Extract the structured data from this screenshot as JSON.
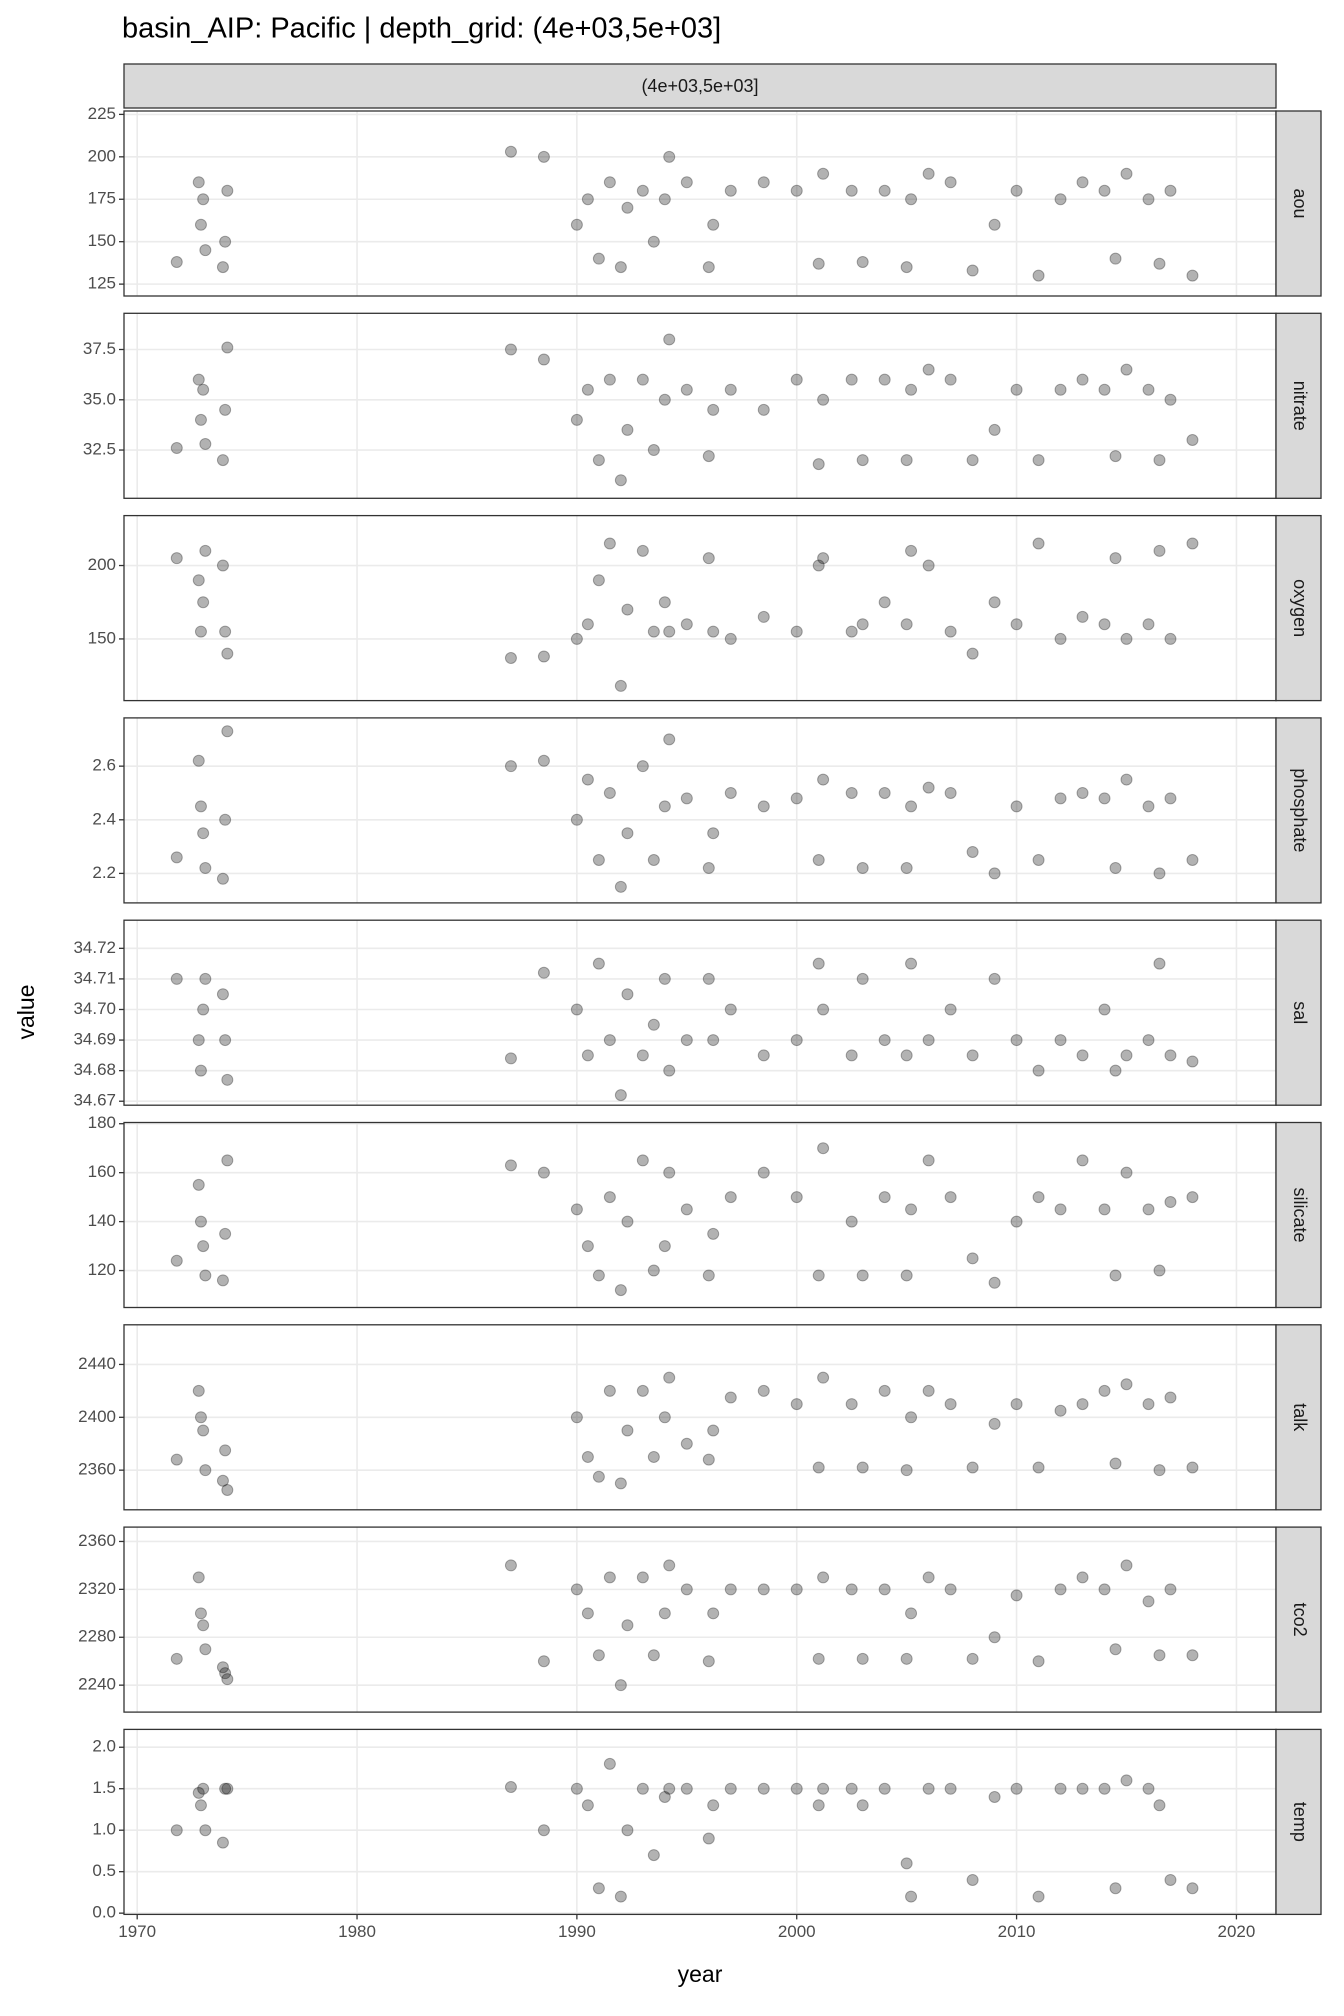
{
  "chart_data": {
    "type": "scatter",
    "title": "basin_AIP: Pacific | depth_grid: (4e+03,5e+03]",
    "facet_label": "(4e+03,5e+03]",
    "x_label": "year",
    "y_label": "value",
    "xlim": [
      1969.4,
      2021.8
    ],
    "xticks": [
      1970,
      1980,
      1990,
      2000,
      2010,
      2020
    ],
    "grid": true,
    "color": "#000000",
    "opacity": 0.3,
    "x": [
      1971.8,
      1972.8,
      1972.9,
      1973.0,
      1973.1,
      1973.9,
      1974.0,
      1974.1,
      1987.0,
      1988.5,
      1990.0,
      1990.5,
      1991.0,
      1991.5,
      1992.0,
      1992.3,
      1993.0,
      1993.5,
      1994.0,
      1994.2,
      1995.0,
      1996.0,
      1996.2,
      1997.0,
      1998.5,
      2000.0,
      2001.0,
      2001.2,
      2002.5,
      2003.0,
      2004.0,
      2005.0,
      2005.2,
      2006.0,
      2007.0,
      2008.0,
      2009.0,
      2010.0,
      2011.0,
      2012.0,
      2013.0,
      2014.0,
      2014.5,
      2015.0,
      2016.0,
      2016.5,
      2017.0,
      2018.0
    ],
    "panels": [
      {
        "name": "aou",
        "ylim": [
          118,
          227
        ],
        "yticks": [
          125,
          150,
          175,
          200,
          225
        ],
        "values": [
          138,
          185,
          160,
          175,
          145,
          135,
          150,
          180,
          203,
          200,
          160,
          175,
          140,
          185,
          135,
          170,
          180,
          150,
          175,
          200,
          185,
          135,
          160,
          180,
          185,
          180,
          137,
          190,
          180,
          138,
          180,
          135,
          175,
          190,
          185,
          133,
          160,
          180,
          130,
          175,
          185,
          180,
          140,
          190,
          175,
          137,
          180,
          130
        ]
      },
      {
        "name": "nitrate",
        "ylim": [
          30.1,
          39.3
        ],
        "yticks": [
          32.5,
          {
            "value": 35,
            "label": "35.0"
          },
          37.5
        ],
        "values": [
          32.6,
          36.0,
          34.0,
          35.5,
          32.8,
          32.0,
          34.5,
          37.6,
          37.5,
          37.0,
          34.0,
          35.5,
          32.0,
          36.0,
          31.0,
          33.5,
          36.0,
          32.5,
          35.0,
          38.0,
          35.5,
          32.2,
          34.5,
          35.5,
          34.5,
          36.0,
          31.8,
          35.0,
          36.0,
          32.0,
          36.0,
          32.0,
          35.5,
          36.5,
          36.0,
          32.0,
          33.5,
          35.5,
          32.0,
          35.5,
          36.0,
          35.5,
          32.2,
          36.5,
          35.5,
          32.0,
          35.0,
          33.0
        ]
      },
      {
        "name": "oxygen",
        "ylim": [
          108,
          234
        ],
        "yticks": [
          150,
          200
        ],
        "values": [
          205,
          190,
          155,
          175,
          210,
          200,
          155,
          140,
          137,
          138,
          150,
          160,
          190,
          215,
          118,
          170,
          210,
          155,
          175,
          155,
          160,
          205,
          155,
          150,
          165,
          155,
          200,
          205,
          155,
          160,
          175,
          160,
          210,
          200,
          155,
          140,
          175,
          160,
          215,
          150,
          165,
          160,
          205,
          150,
          160,
          210,
          150,
          215
        ]
      },
      {
        "name": "phosphate",
        "ylim": [
          2.09,
          2.78
        ],
        "yticks": [
          2.2,
          2.4,
          2.6
        ],
        "values": [
          2.26,
          2.62,
          2.45,
          2.35,
          2.22,
          2.18,
          2.4,
          2.73,
          2.6,
          2.62,
          2.4,
          2.55,
          2.25,
          2.5,
          2.15,
          2.35,
          2.6,
          2.25,
          2.45,
          2.7,
          2.48,
          2.22,
          2.35,
          2.5,
          2.45,
          2.48,
          2.25,
          2.55,
          2.5,
          2.22,
          2.5,
          2.22,
          2.45,
          2.52,
          2.5,
          2.28,
          2.2,
          2.45,
          2.25,
          2.48,
          2.5,
          2.48,
          2.22,
          2.55,
          2.45,
          2.2,
          2.48,
          2.25
        ]
      },
      {
        "name": "sal",
        "ylim": [
          34.6687,
          34.7292
        ],
        "yticks": [
          34.67,
          34.68,
          34.69,
          {
            "value": 34.7,
            "label": "34.70"
          },
          34.71,
          34.72
        ],
        "values": [
          34.71,
          34.69,
          34.68,
          34.7,
          34.71,
          34.705,
          34.69,
          34.677,
          34.684,
          34.712,
          34.7,
          34.685,
          34.715,
          34.69,
          34.672,
          34.705,
          34.685,
          34.695,
          34.71,
          34.68,
          34.69,
          34.71,
          34.69,
          34.7,
          34.685,
          34.69,
          34.715,
          34.7,
          34.685,
          34.71,
          34.69,
          34.685,
          34.715,
          34.69,
          34.7,
          34.685,
          34.71,
          34.69,
          34.68,
          34.69,
          34.685,
          34.7,
          34.68,
          34.685,
          34.69,
          34.715,
          34.685,
          34.683
        ]
      },
      {
        "name": "silicate",
        "ylim": [
          104.9,
          180.5
        ],
        "yticks": [
          120,
          140,
          160,
          180
        ],
        "values": [
          124,
          155,
          140,
          130,
          118,
          116,
          135,
          165,
          163,
          160,
          145,
          130,
          118,
          150,
          112,
          140,
          165,
          120,
          130,
          160,
          145,
          118,
          135,
          150,
          160,
          150,
          118,
          170,
          140,
          118,
          150,
          118,
          145,
          165,
          150,
          125,
          115,
          140,
          150,
          145,
          165,
          145,
          118,
          160,
          145,
          120,
          148,
          150
        ]
      },
      {
        "name": "talk",
        "ylim": [
          2330,
          2470
        ],
        "yticks": [
          2360,
          2400,
          2440
        ],
        "values": [
          2368,
          2420,
          2400,
          2390,
          2360,
          2352,
          2375,
          2345,
          null,
          null,
          2400,
          2370,
          2355,
          2420,
          2350,
          2390,
          2420,
          2370,
          2400,
          2430,
          2380,
          2368,
          2390,
          2415,
          2420,
          2410,
          2362,
          2430,
          2410,
          2362,
          2420,
          2360,
          2400,
          2420,
          2410,
          2362,
          2395,
          2410,
          2362,
          2405,
          2410,
          2420,
          2365,
          2425,
          2410,
          2360,
          2415,
          2362
        ]
      },
      {
        "name": "tco2",
        "ylim": [
          2217.5,
          2372
        ],
        "yticks": [
          2240,
          2280,
          2320,
          2360
        ],
        "values": [
          2262,
          2330,
          2300,
          2290,
          2270,
          2255,
          2250,
          2245,
          2340,
          2260,
          2320,
          2300,
          2265,
          2330,
          2240,
          2290,
          2330,
          2265,
          2300,
          2340,
          2320,
          2260,
          2300,
          2320,
          2320,
          2320,
          2262,
          2330,
          2320,
          2262,
          2320,
          2262,
          2300,
          2330,
          2320,
          2262,
          2280,
          2315,
          2260,
          2320,
          2330,
          2320,
          2270,
          2340,
          2310,
          2265,
          2320,
          2265
        ]
      },
      {
        "name": "temp",
        "ylim": [
          -0.015,
          2.215
        ],
        "yticks": [
          {
            "value": 0,
            "label": "0.0"
          },
          0.5,
          {
            "value": 1,
            "label": "1.0"
          },
          1.5,
          {
            "value": 2,
            "label": "2.0"
          }
        ],
        "values": [
          1.0,
          1.45,
          1.3,
          1.5,
          1.0,
          0.85,
          1.5,
          1.5,
          1.52,
          1.0,
          1.5,
          1.3,
          0.3,
          1.8,
          0.2,
          1.0,
          1.5,
          0.7,
          1.4,
          1.5,
          1.5,
          0.9,
          1.3,
          1.5,
          1.5,
          1.5,
          1.3,
          1.5,
          1.5,
          1.3,
          1.5,
          0.6,
          0.2,
          1.5,
          1.5,
          0.4,
          1.4,
          1.5,
          0.2,
          1.5,
          1.5,
          1.5,
          0.3,
          1.6,
          1.5,
          1.3,
          0.4,
          0.3
        ]
      }
    ]
  }
}
